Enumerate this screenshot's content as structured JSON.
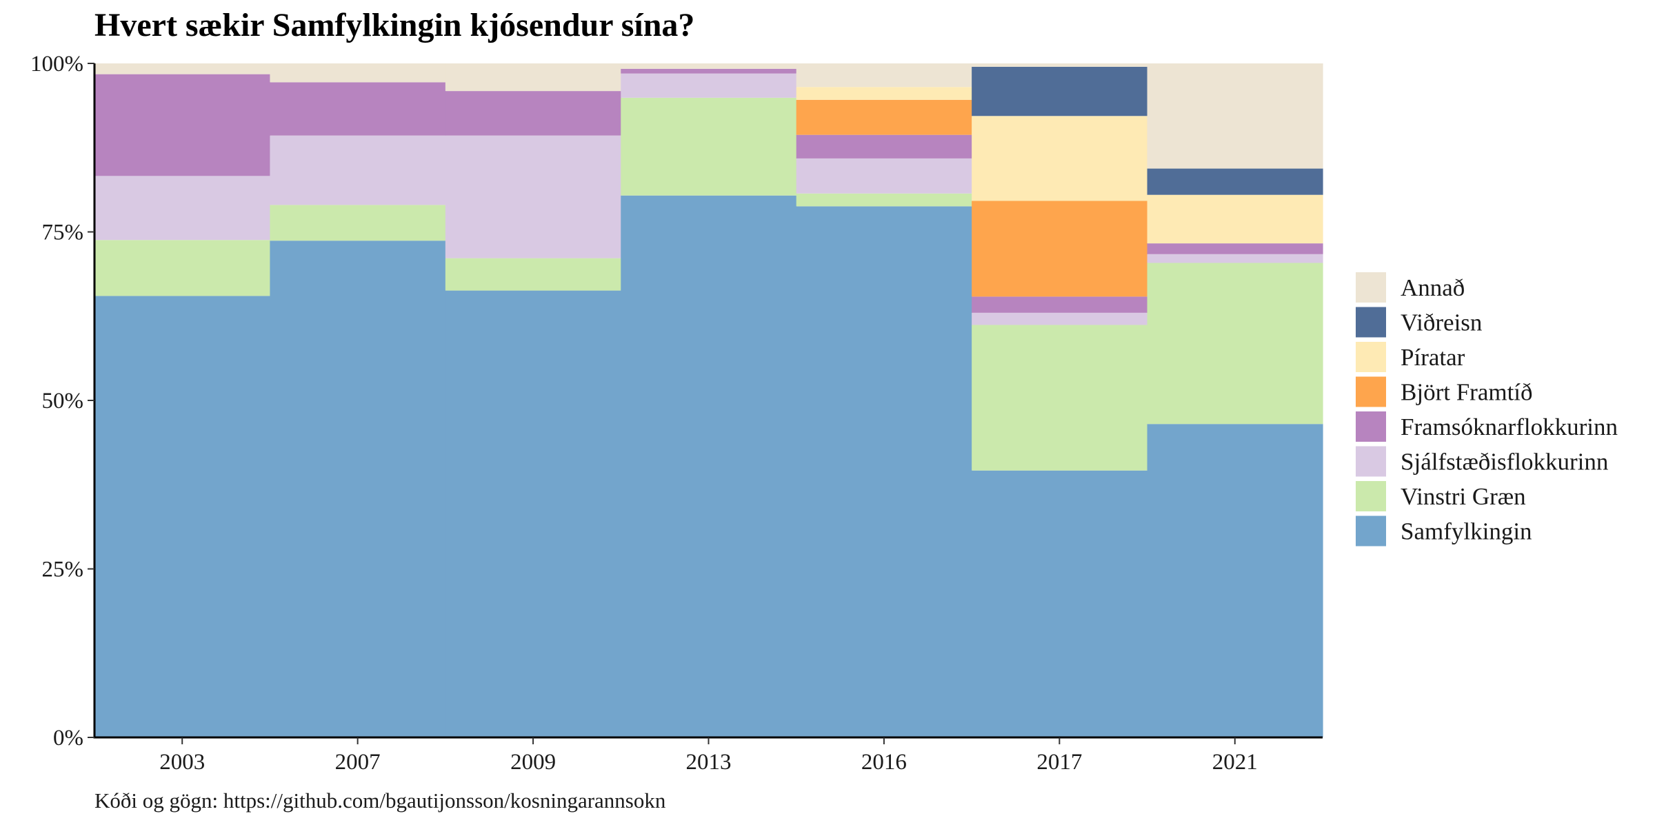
{
  "chart_data": {
    "type": "bar",
    "stacked": true,
    "title": "Hvert sækir Samfylkingin kjósendur sína?",
    "caption": "Kóði og gögn: https://github.com/bgautijonsson/kosningarannsokn",
    "categories": [
      "2003",
      "2007",
      "2009",
      "2013",
      "2016",
      "2017",
      "2021"
    ],
    "ylim": [
      0,
      100
    ],
    "yticks": [
      "0%",
      "25%",
      "50%",
      "75%",
      "100%"
    ],
    "ytick_values": [
      0,
      25,
      50,
      75,
      100
    ],
    "legend_position": "right",
    "series": [
      {
        "name": "Samfylkingin",
        "color": "#73a5cc",
        "values": [
          65.5,
          73.7,
          66.3,
          80.4,
          78.8,
          39.6,
          46.5
        ]
      },
      {
        "name": "Vinstri Græn",
        "color": "#cbe9ac",
        "values": [
          8.3,
          5.3,
          4.8,
          14.5,
          1.9,
          21.6,
          23.9
        ]
      },
      {
        "name": "Sjálfstæðisflokkurinn",
        "color": "#d9c9e3",
        "values": [
          9.5,
          10.3,
          18.2,
          3.6,
          5.2,
          1.8,
          1.3
        ]
      },
      {
        "name": "Framsóknarflokkurinn",
        "color": "#b784bf",
        "values": [
          15.1,
          7.9,
          6.6,
          0.7,
          3.5,
          2.4,
          1.6
        ]
      },
      {
        "name": "Björt Framtíð",
        "color": "#fea54d",
        "values": [
          0,
          0,
          0,
          0,
          5.2,
          14.2,
          0
        ]
      },
      {
        "name": "Píratar",
        "color": "#feeab4",
        "values": [
          0,
          0,
          0,
          0,
          1.9,
          12.6,
          7.2
        ]
      },
      {
        "name": "Viðreisn",
        "color": "#506d97",
        "values": [
          0,
          0,
          0,
          0,
          0,
          7.3,
          3.9
        ]
      },
      {
        "name": "Annað",
        "color": "#ede4d3",
        "values": [
          1.6,
          2.8,
          4.1,
          0.8,
          3.5,
          0.5,
          15.6
        ]
      }
    ]
  }
}
